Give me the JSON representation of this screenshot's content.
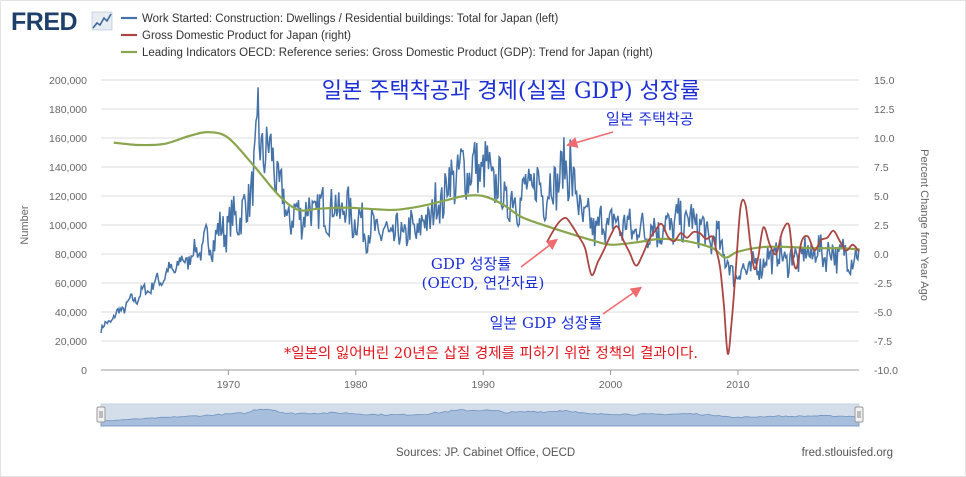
{
  "logo": {
    "text": "FRED"
  },
  "footer": {
    "sources": "Sources: JP. Cabinet Office, OECD",
    "site": "fred.stlouisfed.org"
  },
  "chart_data": {
    "type": "line",
    "title": "일본 주택착공과 경제(실질 GDP) 성장률",
    "ylabel_left": "Number",
    "ylabel_right": "Percent Change from Year Ago",
    "x_ticks": [
      "1970",
      "1980",
      "1990",
      "2000",
      "2010"
    ],
    "x_range": [
      1960.0,
      2019.5
    ],
    "y_left_range": [
      0,
      200000
    ],
    "y_left_ticks": [
      "0",
      "20,000",
      "40,000",
      "60,000",
      "80,000",
      "100,000",
      "120,000",
      "140,000",
      "160,000",
      "180,000",
      "200,000"
    ],
    "y_right_range": [
      -10,
      15
    ],
    "y_right_ticks": [
      "-10.0",
      "-7.5",
      "-5.0",
      "-2.5",
      "0.0",
      "2.5",
      "5.0",
      "7.5",
      "10.0",
      "12.5",
      "15.0"
    ],
    "series": [
      {
        "name": "Work Started: Construction: Dwellings / Residential buildings: Total for Japan (left)",
        "color": "#4572a7",
        "axis": "left",
        "kind": "monthly-trend",
        "x": [
          1960.0,
          1962.0,
          1964.0,
          1966.0,
          1968.0,
          1970.0,
          1971.5,
          1972.2,
          1973.0,
          1973.8,
          1974.6,
          1975.5,
          1977.0,
          1979.0,
          1981.0,
          1983.0,
          1985.0,
          1986.5,
          1987.5,
          1988.5,
          1990.0,
          1991.0,
          1992.0,
          1993.0,
          1994.0,
          1995.0,
          1996.0,
          1996.8,
          1997.5,
          1998.5,
          2000.0,
          2002.0,
          2004.0,
          2006.0,
          2007.0,
          2007.7,
          2008.5,
          2009.5,
          2011.0,
          2013.0,
          2014.0,
          2016.0,
          2018.0,
          2019.5
        ],
        "y": [
          28000,
          45000,
          58000,
          72000,
          85000,
          100000,
          112000,
          150000,
          155000,
          135000,
          105000,
          108000,
          110000,
          112000,
          97000,
          92000,
          97000,
          115000,
          132000,
          138000,
          140000,
          130000,
          115000,
          120000,
          128000,
          122000,
          135000,
          138000,
          112000,
          98000,
          102000,
          97000,
          98000,
          103000,
          100000,
          90000,
          90000,
          66000,
          70000,
          80000,
          76000,
          82000,
          80000,
          78000
        ],
        "peaks": [
          {
            "x": 1972.3,
            "y": 195000
          },
          {
            "x": 1996.8,
            "y": 159000
          }
        ]
      },
      {
        "name": "Gross Domestic Product for Japan (right)",
        "color": "#aa4643",
        "axis": "right",
        "kind": "quarterly",
        "x": [
          1995.0,
          1995.5,
          1996.0,
          1996.5,
          1997.0,
          1997.5,
          1998.0,
          1998.5,
          1999.0,
          1999.5,
          2000.0,
          2000.5,
          2001.0,
          2001.5,
          2002.0,
          2002.5,
          2003.0,
          2003.5,
          2004.0,
          2004.5,
          2005.0,
          2005.5,
          2006.0,
          2006.5,
          2007.0,
          2007.5,
          2008.0,
          2008.3,
          2008.6,
          2008.9,
          2009.2,
          2009.5,
          2009.8,
          2010.2,
          2010.6,
          2011.0,
          2011.3,
          2011.6,
          2012.0,
          2012.5,
          2013.0,
          2013.5,
          2014.0,
          2014.3,
          2014.6,
          2015.0,
          2015.5,
          2016.0,
          2016.5,
          2017.0,
          2017.5,
          2018.0,
          2018.5,
          2019.0,
          2019.5
        ],
        "y": [
          1.0,
          2.0,
          2.8,
          3.1,
          2.4,
          1.5,
          0.5,
          -1.8,
          -0.7,
          0.4,
          1.6,
          2.4,
          1.2,
          0.1,
          -1.0,
          -0.1,
          1.2,
          2.0,
          2.6,
          1.5,
          1.1,
          1.8,
          1.4,
          1.9,
          1.8,
          1.3,
          1.5,
          0.3,
          -1.2,
          -4.5,
          -8.6,
          -5.9,
          -1.8,
          4.0,
          4.2,
          0.6,
          -1.3,
          -0.2,
          2.3,
          0.8,
          0.0,
          2.0,
          2.5,
          -0.3,
          -1.2,
          1.1,
          1.5,
          0.3,
          1.2,
          1.4,
          2.0,
          1.1,
          0.3,
          0.8,
          0.2
        ]
      },
      {
        "name": "Leading Indicators OECD: Reference series: Gross Domestic Product (GDP): Trend for Japan (right)",
        "color": "#89a54e",
        "axis": "right",
        "kind": "smooth",
        "x": [
          1961.0,
          1963.0,
          1965.0,
          1967.0,
          1968.5,
          1970.0,
          1972.0,
          1974.0,
          1975.5,
          1977.0,
          1979.0,
          1981.0,
          1983.0,
          1985.0,
          1987.0,
          1988.5,
          1990.0,
          1991.5,
          1993.0,
          1995.0,
          1997.0,
          1998.5,
          2000.0,
          2002.0,
          2004.0,
          2006.0,
          2008.0,
          2009.0,
          2010.0,
          2012.0,
          2014.0,
          2016.0,
          2018.0,
          2019.5
        ],
        "y": [
          9.6,
          9.4,
          9.5,
          10.2,
          10.5,
          10.0,
          7.6,
          5.0,
          3.8,
          3.9,
          4.0,
          3.9,
          3.8,
          4.1,
          4.6,
          5.0,
          5.0,
          4.3,
          3.2,
          2.4,
          1.7,
          1.2,
          0.8,
          1.0,
          1.3,
          1.1,
          0.5,
          -0.3,
          0.2,
          0.6,
          0.6,
          0.5,
          0.5,
          0.4
        ]
      }
    ],
    "annotations": [
      {
        "text": "일본 주택착공",
        "style": "blue",
        "arrow_to": [
          1996.6,
          155000
        ]
      },
      {
        "text": "GDP 성장률",
        "style": "blue"
      },
      {
        "text": "(OECD, 연간자료)",
        "style": "blue",
        "arrow_to": [
          1995.8,
          90000
        ]
      },
      {
        "text": "일본 GDP 성장률",
        "style": "blue",
        "arrow_to": [
          2002.4,
          57000
        ]
      },
      {
        "text": "*일본의 잃어버린 20년은 삽질 경제를 피하기 위한 정책의 결과이다.",
        "style": "red"
      }
    ],
    "navigator": {
      "range": [
        1960.0,
        2019.5
      ]
    }
  }
}
